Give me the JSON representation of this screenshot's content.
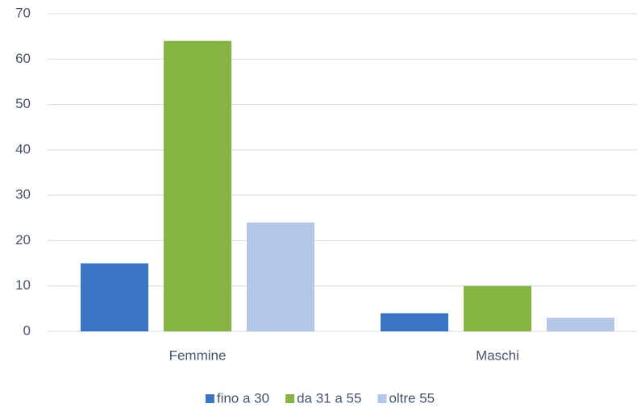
{
  "chart_data": {
    "type": "bar",
    "categories": [
      "Femmine",
      "Maschi"
    ],
    "series": [
      {
        "name": "fino a 30",
        "color": "#3a75c4",
        "values": [
          15,
          4
        ]
      },
      {
        "name": "da 31 a 55",
        "color": "#86b443",
        "values": [
          64,
          10
        ]
      },
      {
        "name": "oltre 55",
        "color": "#b4c7e7",
        "values": [
          24,
          3
        ]
      }
    ],
    "ylim": [
      0,
      70
    ],
    "yticks": [
      0,
      10,
      20,
      30,
      40,
      50,
      60,
      70
    ],
    "grid": true,
    "legend": "bottom"
  }
}
